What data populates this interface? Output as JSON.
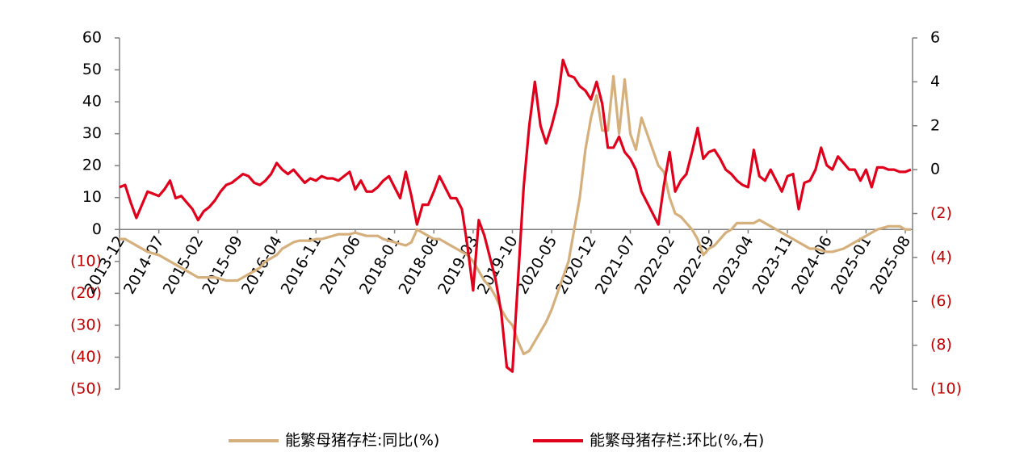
{
  "chart_data": {
    "type": "line",
    "categories": [
      "2013-12",
      null,
      null,
      null,
      null,
      null,
      null,
      "2014-07",
      null,
      null,
      null,
      null,
      null,
      null,
      "2015-02",
      null,
      null,
      null,
      null,
      null,
      null,
      "2015-09",
      null,
      null,
      null,
      null,
      null,
      null,
      "2016-04",
      null,
      null,
      null,
      null,
      null,
      null,
      "2016-11",
      null,
      null,
      null,
      null,
      null,
      null,
      "2017-06",
      null,
      null,
      null,
      null,
      null,
      null,
      "2018-01",
      null,
      null,
      null,
      null,
      null,
      null,
      "2018-08",
      null,
      null,
      null,
      null,
      null,
      null,
      "2019-03",
      null,
      null,
      null,
      null,
      null,
      null,
      "2019-10",
      null,
      null,
      null,
      null,
      null,
      null,
      "2020-05",
      null,
      null,
      null,
      null,
      null,
      null,
      "2020-12",
      null,
      null,
      null,
      null,
      null,
      null,
      "2021-07",
      null,
      null,
      null,
      null,
      null,
      null,
      "2022-02",
      null,
      null,
      null,
      null,
      null,
      null,
      "2022-09",
      null,
      null,
      null,
      null,
      null,
      null,
      "2023-04",
      null,
      null,
      null,
      null,
      null,
      null,
      "2023-11",
      null,
      null,
      null,
      null,
      null,
      null,
      "2024-06",
      null,
      null,
      null,
      null,
      null,
      null,
      "2025-01",
      null,
      null,
      null,
      null,
      null,
      null,
      "2025-08",
      null
    ],
    "series": [
      {
        "name": "能繁母猪存栏:同比(%)",
        "color": "#d6b07c",
        "values": [
          -3,
          -3,
          -4,
          -5,
          -6,
          -7,
          -7.5,
          -8,
          -9,
          -10,
          -11,
          -12,
          -13,
          -14,
          -15,
          -15,
          -15,
          -15,
          -15.5,
          -16,
          -16,
          -16,
          -15,
          -14,
          -13,
          -12,
          -10,
          -9,
          -8,
          -6,
          -5,
          -4,
          -3.5,
          -3.5,
          -3.5,
          -3,
          -3,
          -2.5,
          -2,
          -1.5,
          -1.5,
          -1.5,
          -1,
          -1.5,
          -2,
          -2,
          -2,
          -3,
          -3.5,
          -4,
          -4.5,
          -5,
          -4,
          0,
          -1,
          -2,
          -3,
          -3,
          -4,
          -5,
          -6,
          -7,
          -8,
          -10,
          -13,
          -16,
          -18,
          -21,
          -25,
          -28,
          -30,
          -35,
          -39,
          -38,
          -35,
          -32,
          -29,
          -25,
          -20,
          -15,
          -10,
          0,
          10,
          25,
          35,
          42,
          31,
          31,
          48,
          30,
          47,
          30,
          25,
          35,
          30,
          25,
          20,
          18,
          10,
          5,
          4,
          2,
          0,
          -3,
          -8,
          -6,
          -5,
          -3,
          -1,
          0,
          2,
          2,
          2,
          2,
          3,
          2,
          1,
          0,
          -1,
          -2,
          -3,
          -4,
          -5,
          -6,
          -6,
          -6.5,
          -7,
          -7,
          -6.5,
          -6,
          -5,
          -4,
          -3,
          -2,
          -1,
          0,
          0.5,
          1,
          1,
          1,
          0,
          0
        ]
      },
      {
        "name": "能繁母猪存栏:环比(%,右)",
        "color": "#e0001b",
        "axis": "y2",
        "values": [
          -0.8,
          -0.7,
          -1.5,
          -2.2,
          -1.6,
          -1,
          -1.1,
          -1.2,
          -0.9,
          -0.5,
          -1.3,
          -1.2,
          -1.5,
          -1.8,
          -2.3,
          -1.9,
          -1.7,
          -1.4,
          -1,
          -0.7,
          -0.6,
          -0.4,
          -0.2,
          -0.3,
          -0.6,
          -0.7,
          -0.5,
          -0.2,
          0.3,
          0,
          -0.2,
          0,
          -0.3,
          -0.6,
          -0.4,
          -0.5,
          -0.3,
          -0.4,
          -0.4,
          -0.5,
          -0.3,
          -0.1,
          -0.9,
          -0.5,
          -1,
          -1,
          -0.8,
          -0.5,
          -0.3,
          -0.8,
          -1.3,
          -0.1,
          -1.2,
          -2.5,
          -1.6,
          -1.6,
          -1,
          -0.3,
          -0.8,
          -1.3,
          -1.3,
          -1.8,
          -3.5,
          -5.5,
          -2.3,
          -3,
          -4,
          -5,
          -6.5,
          -9,
          -9.2,
          -5,
          -0.8,
          2,
          4,
          2,
          1.2,
          2,
          3,
          5,
          4.3,
          4.2,
          3.8,
          3.6,
          3.2,
          4,
          3,
          1,
          1,
          1.5,
          0.8,
          0.5,
          0,
          -1,
          -1.5,
          -2,
          -2.5,
          -0.7,
          0.8,
          -1,
          -0.5,
          -0.2,
          0.8,
          1.9,
          0.5,
          0.8,
          0.9,
          0.5,
          0,
          -0.2,
          -0.5,
          -0.7,
          -0.8,
          0.9,
          -0.3,
          -0.5,
          0,
          -0.5,
          -1,
          -0.3,
          -0.2,
          -1.8,
          -0.6,
          -0.5,
          0,
          1,
          0.2,
          0,
          0.6,
          0.3,
          0,
          0,
          -0.5,
          0,
          -0.8,
          0.1,
          0.1,
          0,
          0,
          -0.1,
          -0.1,
          0
        ]
      }
    ],
    "ylim": [
      -50,
      60
    ],
    "yticks": [
      60,
      50,
      40,
      30,
      20,
      10,
      0,
      {
        "value": -10,
        "label": "(10)"
      },
      {
        "value": -20,
        "label": "(20)"
      },
      {
        "value": -30,
        "label": "(30)"
      },
      {
        "value": -40,
        "label": "(40)"
      },
      {
        "value": -50,
        "label": "(50)"
      }
    ],
    "y2lim": [
      -10,
      6
    ],
    "y2ticks": [
      6,
      4,
      2,
      0,
      {
        "value": -2,
        "label": "(2)"
      },
      {
        "value": -4,
        "label": "(4)"
      },
      {
        "value": -6,
        "label": "(6)"
      },
      {
        "value": -8,
        "label": "(8)"
      },
      {
        "value": -10,
        "label": "(10)"
      }
    ],
    "negative_tick_color": "#c00000",
    "legend": "bottom"
  }
}
